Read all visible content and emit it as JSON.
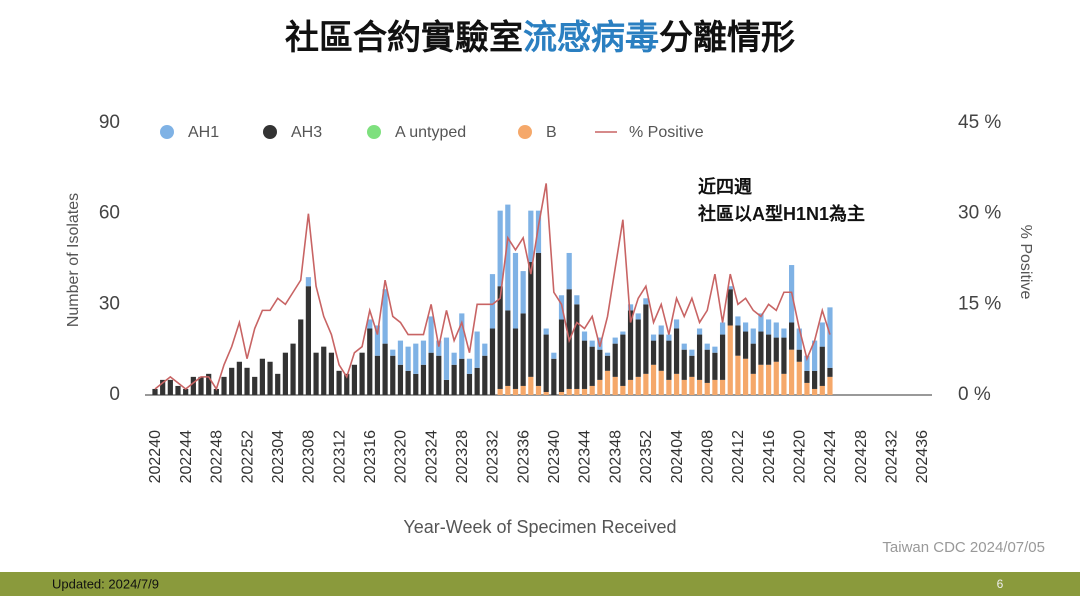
{
  "chart_data": {
    "type": "bar",
    "title_parts": [
      "社區合約實驗室",
      "流感病毒",
      "分離情形"
    ],
    "title_colors": [
      "#111111",
      "#2a7fc1",
      "#111111"
    ],
    "ylabel": "Number of Isolates",
    "y2label": "% Positive",
    "xlabel": "Year-Week of Specimen Received",
    "annotation": [
      "近四週",
      "社區以A型H1N1為主"
    ],
    "source": "Taiwan CDC 2024/07/05",
    "footer": "Updated: 2024/7/9",
    "page_number": "6",
    "stacked": true,
    "categories": [
      "202240",
      null,
      null,
      null,
      "202244",
      null,
      null,
      null,
      "202248",
      null,
      null,
      null,
      "202252",
      null,
      null,
      null,
      "202304",
      null,
      null,
      null,
      "202308",
      null,
      null,
      null,
      "202312",
      null,
      null,
      null,
      "202316",
      null,
      null,
      null,
      "202320",
      null,
      null,
      null,
      "202324",
      null,
      null,
      null,
      "202328",
      null,
      null,
      null,
      "202332",
      null,
      null,
      null,
      "202336",
      null,
      null,
      null,
      "202340",
      null,
      null,
      null,
      "202344",
      null,
      null,
      null,
      "202348",
      null,
      null,
      null,
      "202352",
      null,
      null,
      null,
      "202404",
      null,
      null,
      null,
      "202408",
      null,
      null,
      null,
      "202412",
      null,
      null,
      null,
      "202416",
      null,
      null,
      null,
      "202420",
      null,
      null,
      null,
      "202424",
      null,
      null,
      null,
      "202428",
      null,
      null,
      null,
      "202432",
      null,
      null,
      null,
      "202436"
    ],
    "series": [
      {
        "name": "B",
        "color": "#f5a86a",
        "values": [
          0,
          0,
          0,
          0,
          0,
          0,
          0,
          0,
          0,
          0,
          0,
          0,
          0,
          0,
          0,
          0,
          0,
          0,
          0,
          0,
          0,
          0,
          0,
          0,
          0,
          0,
          0,
          0,
          0,
          0,
          0,
          0,
          0,
          0,
          0,
          0,
          0,
          0,
          0,
          0,
          0,
          0,
          0,
          0,
          0,
          2,
          3,
          2,
          3,
          6,
          3,
          1,
          0,
          1,
          2,
          2,
          2,
          3,
          5,
          8,
          6,
          3,
          5,
          6,
          7,
          10,
          8,
          5,
          7,
          5,
          6,
          5,
          4,
          5,
          5,
          23,
          13,
          12,
          7,
          10,
          10,
          11,
          7,
          15,
          11,
          4,
          2,
          3,
          6,
          null,
          null,
          null,
          null,
          null,
          null,
          null,
          null,
          null,
          null,
          null,
          null
        ]
      },
      {
        "name": "A untyped",
        "color": "#7ee07e",
        "values": [
          0,
          0,
          0,
          0,
          0,
          0,
          0,
          0,
          0,
          0,
          0,
          0,
          0,
          0,
          0,
          0,
          0,
          0,
          0,
          0,
          0,
          0,
          0,
          0,
          0,
          0,
          0,
          0,
          0,
          0,
          0,
          0,
          0,
          0,
          0,
          0,
          0,
          0,
          0,
          0,
          0,
          0,
          0,
          0,
          0,
          0,
          0,
          0,
          0,
          0,
          0,
          0,
          0,
          0,
          0,
          0,
          0,
          0,
          0,
          0,
          0,
          0,
          0,
          0,
          0,
          0,
          0,
          0,
          0,
          0,
          0,
          0,
          0,
          0,
          0,
          0,
          0,
          0,
          0,
          0,
          0,
          0,
          0,
          0,
          0,
          0,
          0,
          0,
          0,
          null,
          null,
          null,
          null,
          null,
          null,
          null,
          null,
          null,
          null,
          null,
          null
        ]
      },
      {
        "name": "AH3",
        "color": "#333333",
        "values": [
          2,
          5,
          5,
          3,
          2,
          6,
          6,
          7,
          2,
          6,
          9,
          11,
          9,
          6,
          12,
          11,
          7,
          14,
          17,
          25,
          36,
          14,
          16,
          14,
          8,
          7,
          10,
          14,
          22,
          13,
          17,
          13,
          10,
          8,
          7,
          10,
          14,
          13,
          5,
          10,
          12,
          7,
          9,
          13,
          22,
          34,
          25,
          20,
          24,
          38,
          44,
          19,
          12,
          24,
          33,
          28,
          16,
          13,
          10,
          5,
          11,
          17,
          23,
          19,
          23,
          8,
          12,
          13,
          15,
          10,
          7,
          15,
          11,
          9,
          15,
          12,
          10,
          9,
          10,
          11,
          10,
          8,
          12,
          9,
          4,
          4,
          6,
          13,
          3,
          null,
          null,
          null,
          null,
          null,
          null,
          null,
          null,
          null,
          null,
          null,
          null
        ]
      },
      {
        "name": "AH1",
        "color": "#7fb2e5",
        "values": [
          0,
          0,
          0,
          0,
          0,
          0,
          0,
          0,
          0,
          0,
          0,
          0,
          0,
          0,
          0,
          0,
          0,
          0,
          0,
          0,
          3,
          0,
          0,
          0,
          0,
          0,
          0,
          0,
          3,
          10,
          18,
          2,
          8,
          8,
          10,
          8,
          12,
          5,
          14,
          4,
          15,
          5,
          12,
          4,
          18,
          25,
          35,
          25,
          14,
          17,
          14,
          2,
          2,
          8,
          12,
          3,
          3,
          2,
          4,
          1,
          2,
          1,
          2,
          2,
          2,
          2,
          3,
          2,
          3,
          2,
          2,
          2,
          2,
          2,
          4,
          1,
          3,
          3,
          5,
          6,
          5,
          5,
          3,
          19,
          7,
          5,
          10,
          8,
          20,
          null,
          null,
          null,
          null,
          null,
          null,
          null,
          null,
          null,
          null,
          null,
          null
        ]
      },
      {
        "name": "% Positive",
        "color": "#c86464",
        "type": "line",
        "axis": "y2",
        "values": [
          1,
          2,
          3,
          2,
          1,
          2,
          3,
          3,
          1,
          5,
          8,
          12,
          6,
          11,
          14,
          14,
          16,
          15,
          17,
          19,
          30,
          18,
          13,
          10,
          5,
          3,
          7,
          8,
          14,
          10,
          19,
          13,
          12,
          10,
          10,
          10,
          15,
          8,
          14,
          9,
          12,
          7,
          15,
          15,
          15,
          16,
          26,
          24,
          26,
          20,
          28,
          35,
          17,
          15,
          9,
          12,
          11,
          13,
          8,
          13,
          21,
          29,
          12,
          16,
          18,
          12,
          15,
          10,
          16,
          13,
          16,
          12,
          14,
          20,
          12,
          20,
          15,
          16,
          14,
          13,
          15,
          14,
          17,
          17,
          11,
          6,
          9,
          14,
          10,
          null,
          null,
          null,
          null,
          null,
          null,
          null,
          null,
          null,
          null,
          null,
          null
        ]
      }
    ],
    "legend_order": [
      3,
      2,
      1,
      0,
      4
    ],
    "ylim": [
      0,
      90
    ],
    "yticks": [
      0,
      30,
      60,
      90
    ],
    "y2lim": [
      0,
      45
    ],
    "y2ticks": [
      {
        "value": 0,
        "label": "0 %"
      },
      {
        "value": 15,
        "label": "15 %"
      },
      {
        "value": 30,
        "label": "30 %"
      },
      {
        "value": 45,
        "label": "45 %"
      }
    ],
    "grid": false
  }
}
